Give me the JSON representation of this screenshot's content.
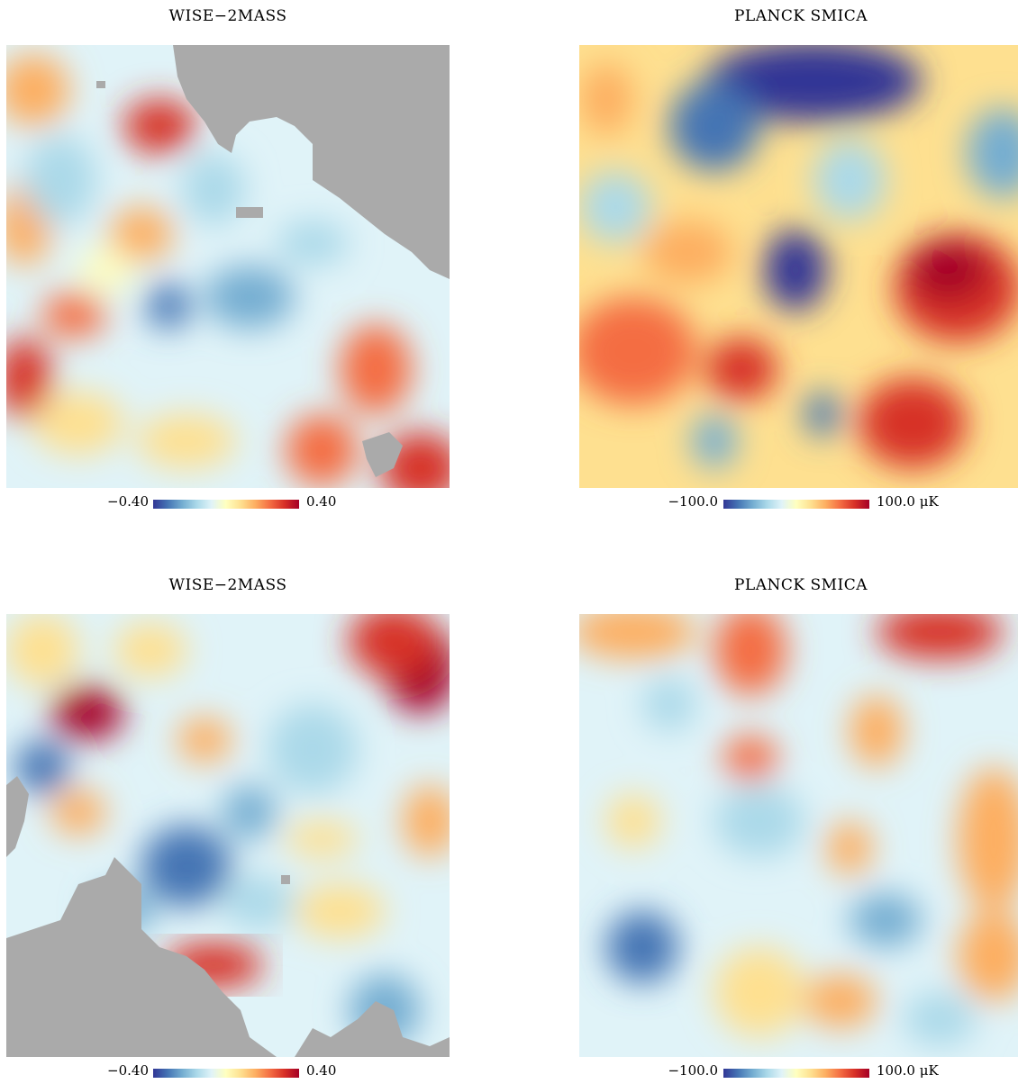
{
  "panels": [
    {
      "id": "tl",
      "title": "WISE−2MASS",
      "cbar_min": "−0.40",
      "cbar_max": "0.40",
      "masked": true
    },
    {
      "id": "tr",
      "title": "PLANCK SMICA",
      "cbar_min": "−100.0",
      "cbar_max": "100.0 μK",
      "masked": false
    },
    {
      "id": "bl",
      "title": "WISE−2MASS",
      "cbar_min": "−0.40",
      "cbar_max": "0.40",
      "masked": true
    },
    {
      "id": "br",
      "title": "PLANCK SMICA",
      "cbar_min": "−100.0",
      "cbar_max": "100.0 μK",
      "masked": false
    }
  ],
  "colors": {
    "colormap": [
      "#313695",
      "#4575b4",
      "#74add1",
      "#abd9e9",
      "#e0f3f8",
      "#ffffbf",
      "#fee090",
      "#fdae61",
      "#f46d43",
      "#d73027",
      "#a50026"
    ],
    "mask": "#aaaaaa",
    "background": "#ffffff"
  }
}
